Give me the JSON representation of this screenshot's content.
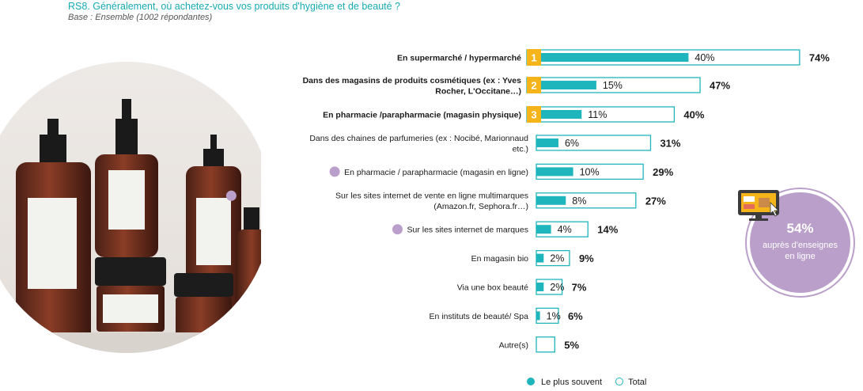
{
  "header": {
    "question": "RS8. Généralement, où achetez-vous vos produits d'hygiène et de beauté ?",
    "base": "Base : Ensemble (1002 répondantes)"
  },
  "colors": {
    "accent": "#1fb5bd",
    "rank": "#f4b41a",
    "online": "#b99fc9"
  },
  "callout": {
    "value": "54%",
    "text_line1": "auprès d'enseignes",
    "text_line2": "en ligne",
    "icon": "monitor-shopping-icon"
  },
  "legend": {
    "most_often": "Le plus souvent",
    "total": "Total"
  },
  "photo": {
    "icon": "cosmetic-bottles-photo"
  },
  "chart_data": {
    "type": "bar",
    "orientation": "horizontal",
    "categories": [
      "En supermarché / hypermarché",
      "Dans des magasins de produits cosmétiques (ex : Yves Rocher, L'Occitane…)",
      "En pharmacie /parapharmacie (magasin physique)",
      "Dans des chaines de parfumeries (ex : Nocibé, Marionnaud etc.)",
      "En pharmacie / parapharmacie (magasin en ligne)",
      "Sur les sites internet de vente en ligne multimarques (Amazon.fr, Sephora.fr…)",
      "Sur les sites internet de marques",
      "En magasin bio",
      "Via une box beauté",
      "En instituts de beauté/ Spa",
      "Autre(s)"
    ],
    "label_lines": [
      [
        "En supermarché / hypermarché"
      ],
      [
        "Dans des magasins de produits cosmétiques (ex : Yves",
        "Rocher, L'Occitane…)"
      ],
      [
        "En pharmacie /parapharmacie (magasin physique)"
      ],
      [
        "Dans des chaines de parfumeries (ex : Nocibé, Marionnaud",
        "etc.)"
      ],
      [
        "En pharmacie / parapharmacie (magasin en ligne)"
      ],
      [
        "Sur les sites internet de vente en ligne multimarques",
        "(Amazon.fr, Sephora.fr…)"
      ],
      [
        "Sur les sites internet de marques"
      ],
      [
        "En magasin bio"
      ],
      [
        "Via une box beauté"
      ],
      [
        "En instituts de beauté/ Spa"
      ],
      [
        "Autre(s)"
      ]
    ],
    "series": [
      {
        "name": "Le plus souvent",
        "values": [
          40,
          15,
          11,
          6,
          10,
          8,
          4,
          2,
          2,
          1,
          null
        ]
      },
      {
        "name": "Total",
        "values": [
          74,
          47,
          40,
          31,
          29,
          27,
          14,
          9,
          7,
          6,
          5
        ]
      }
    ],
    "most_often_labels": [
      "40%",
      "15%",
      "11%",
      "6%",
      "10%",
      "8%",
      "4%",
      "2%",
      "2%",
      "1%",
      ""
    ],
    "total_labels": [
      "74%",
      "47%",
      "40%",
      "31%",
      "29%",
      "27%",
      "14%",
      "9%",
      "7%",
      "6%",
      "5%"
    ],
    "rank_badges": [
      "1",
      "2",
      "3"
    ],
    "bold_labels": [
      true,
      true,
      true,
      false,
      false,
      false,
      false,
      false,
      false,
      false,
      false
    ],
    "online_marker": [
      false,
      false,
      false,
      false,
      true,
      true,
      true,
      false,
      false,
      false,
      false
    ],
    "xlim": [
      0,
      100
    ],
    "grid": false,
    "legend_position": "bottom"
  }
}
